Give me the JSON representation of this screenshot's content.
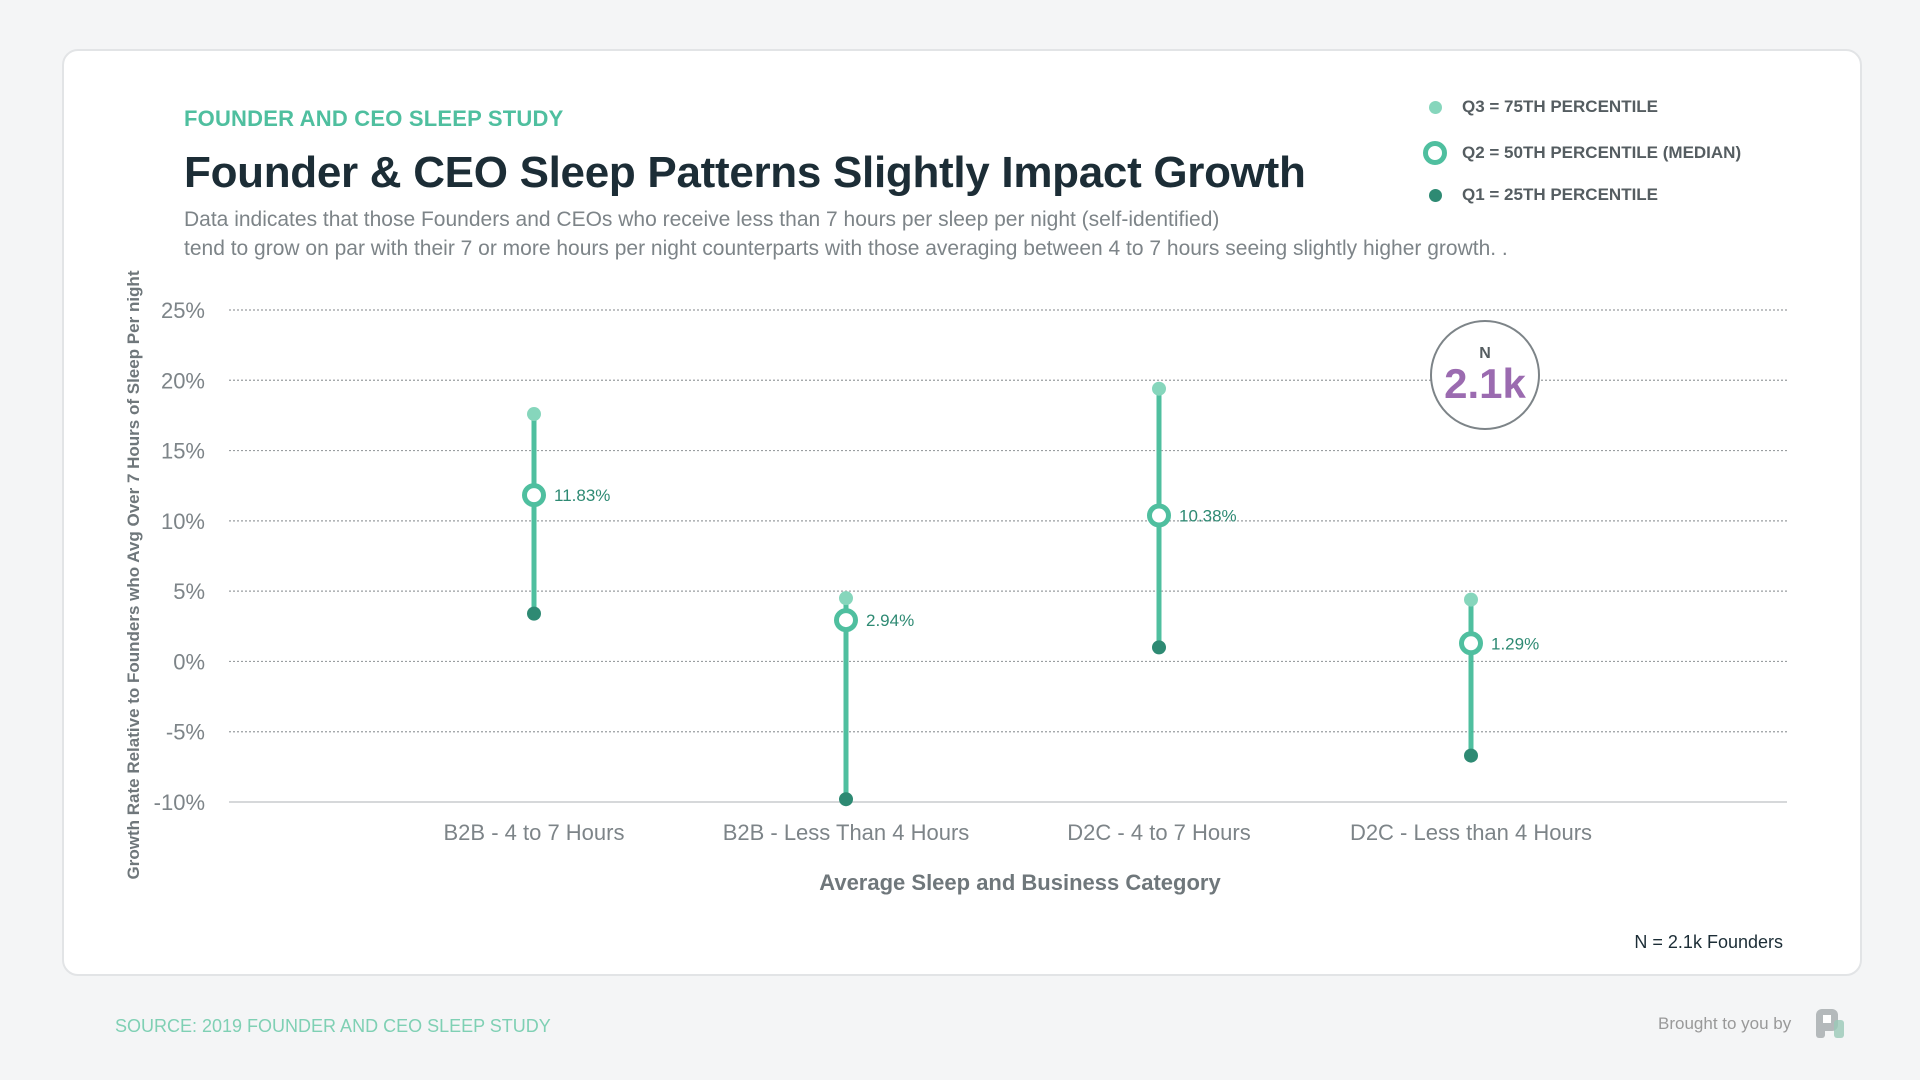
{
  "header": {
    "supertitle": "FOUNDER AND CEO SLEEP STUDY",
    "title": "Founder & CEO Sleep Patterns Slightly Impact Growth",
    "subtitle_lines": [
      "Data indicates that those Founders and CEOs who receive less than 7 hours per sleep per night (self-identified)",
      "tend to grow on par with their 7 or more hours per night counterparts with those averaging between 4 to 7 hours seeing slightly higher growth. ."
    ]
  },
  "legend": [
    {
      "label": "Q3 = 75TH PERCENTILE",
      "color": "#86d6bc"
    },
    {
      "label": "Q2 = 50TH PERCENTILE (MEDIAN)",
      "color": "#4fbf9f"
    },
    {
      "label": "Q1 = 25TH PERCENTILE",
      "color": "#2e8a73"
    }
  ],
  "badge": {
    "label": "N",
    "value": "2.1k",
    "color": "#9b6bb0"
  },
  "footnote": "N = 2.1k Founders",
  "footer": {
    "source": "SOURCE: 2019 FOUNDER AND CEO SLEEP STUDY",
    "brought_by": "Brought to you by"
  },
  "chart_data": {
    "type": "range-dot",
    "xlabel": "Average Sleep and Business Category",
    "ylabel": "Growth Rate Relative to Founders who Avg Over 7 Hours of Sleep Per night",
    "ylim": [
      -10,
      25
    ],
    "yticks": [
      "25%",
      "20%",
      "15%",
      "10%",
      "5%",
      "0%",
      "-5%",
      "-10%"
    ],
    "ytick_values": [
      25,
      20,
      15,
      10,
      5,
      0,
      -5,
      -10
    ],
    "grid": true,
    "legend_position": "top-right",
    "categories": [
      "B2B - 4 to 7 Hours",
      "B2B - Less Than 4 Hours",
      "D2C - 4 to 7 Hours",
      "D2C - Less than 4 Hours"
    ],
    "series": [
      {
        "name": "Q3 = 75TH PERCENTILE",
        "values": [
          17.6,
          4.5,
          19.4,
          4.4
        ]
      },
      {
        "name": "Q2 = 50TH PERCENTILE (MEDIAN)",
        "values": [
          11.83,
          2.94,
          10.38,
          1.29
        ],
        "labels": [
          "11.83%",
          "2.94%",
          "10.38%",
          "1.29%"
        ]
      },
      {
        "name": "Q1 = 25TH PERCENTILE",
        "values": [
          3.4,
          -9.8,
          1.0,
          -6.7
        ]
      }
    ]
  }
}
